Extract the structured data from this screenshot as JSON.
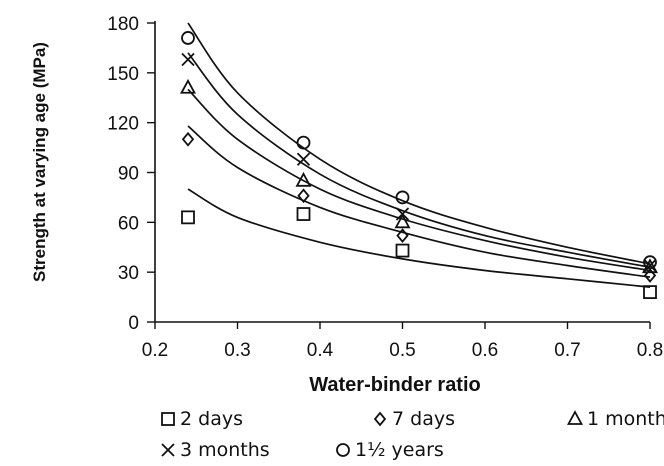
{
  "chart_data": {
    "type": "scatter",
    "xlabel": "Water-binder ratio",
    "ylabel": "Strength at varying age (MPa)",
    "xlim": [
      0.2,
      0.8
    ],
    "ylim": [
      0,
      180
    ],
    "x_ticks": [
      "0.2",
      "0.3",
      "0.4",
      "0.5",
      "0.6",
      "0.7",
      "0.8"
    ],
    "y_ticks": [
      "0",
      "30",
      "60",
      "90",
      "120",
      "150",
      "180"
    ],
    "grid": false,
    "legend_position": "bottom",
    "series": [
      {
        "name": "2 days",
        "marker": "square",
        "x": [
          0.24,
          0.38,
          0.5,
          0.8
        ],
        "y": [
          63,
          65,
          43,
          18
        ],
        "curve": {
          "x": [
            0.24,
            0.3,
            0.4,
            0.5,
            0.6,
            0.7,
            0.8
          ],
          "y": [
            80,
            63,
            48,
            38,
            31,
            26,
            21
          ]
        }
      },
      {
        "name": "7 days",
        "marker": "diamond",
        "x": [
          0.24,
          0.38,
          0.5,
          0.8
        ],
        "y": [
          110,
          76,
          52,
          28
        ],
        "curve": {
          "x": [
            0.24,
            0.3,
            0.4,
            0.5,
            0.6,
            0.7,
            0.8
          ],
          "y": [
            118,
            93,
            69,
            54,
            42,
            34,
            27
          ]
        }
      },
      {
        "name": "1 month",
        "marker": "triangle",
        "x": [
          0.24,
          0.38,
          0.5,
          0.8
        ],
        "y": [
          141,
          85,
          60,
          33
        ],
        "curve": {
          "x": [
            0.24,
            0.3,
            0.4,
            0.5,
            0.6,
            0.7,
            0.8
          ],
          "y": [
            140,
            110,
            80,
            62,
            49,
            39,
            31
          ]
        }
      },
      {
        "name": "3 months",
        "marker": "cross",
        "x": [
          0.24,
          0.38,
          0.5,
          0.8
        ],
        "y": [
          158,
          98,
          65,
          34
        ],
        "curve": {
          "x": [
            0.24,
            0.3,
            0.4,
            0.5,
            0.6,
            0.7,
            0.8
          ],
          "y": [
            162,
            125,
            89,
            67,
            52,
            42,
            33
          ]
        }
      },
      {
        "name": "1½ years",
        "marker": "circle",
        "x": [
          0.24,
          0.38,
          0.5,
          0.8
        ],
        "y": [
          171,
          108,
          75,
          36
        ],
        "curve": {
          "x": [
            0.24,
            0.3,
            0.4,
            0.5,
            0.6,
            0.7,
            0.8
          ],
          "y": [
            180,
            138,
            98,
            73,
            57,
            45,
            35
          ]
        }
      }
    ]
  }
}
